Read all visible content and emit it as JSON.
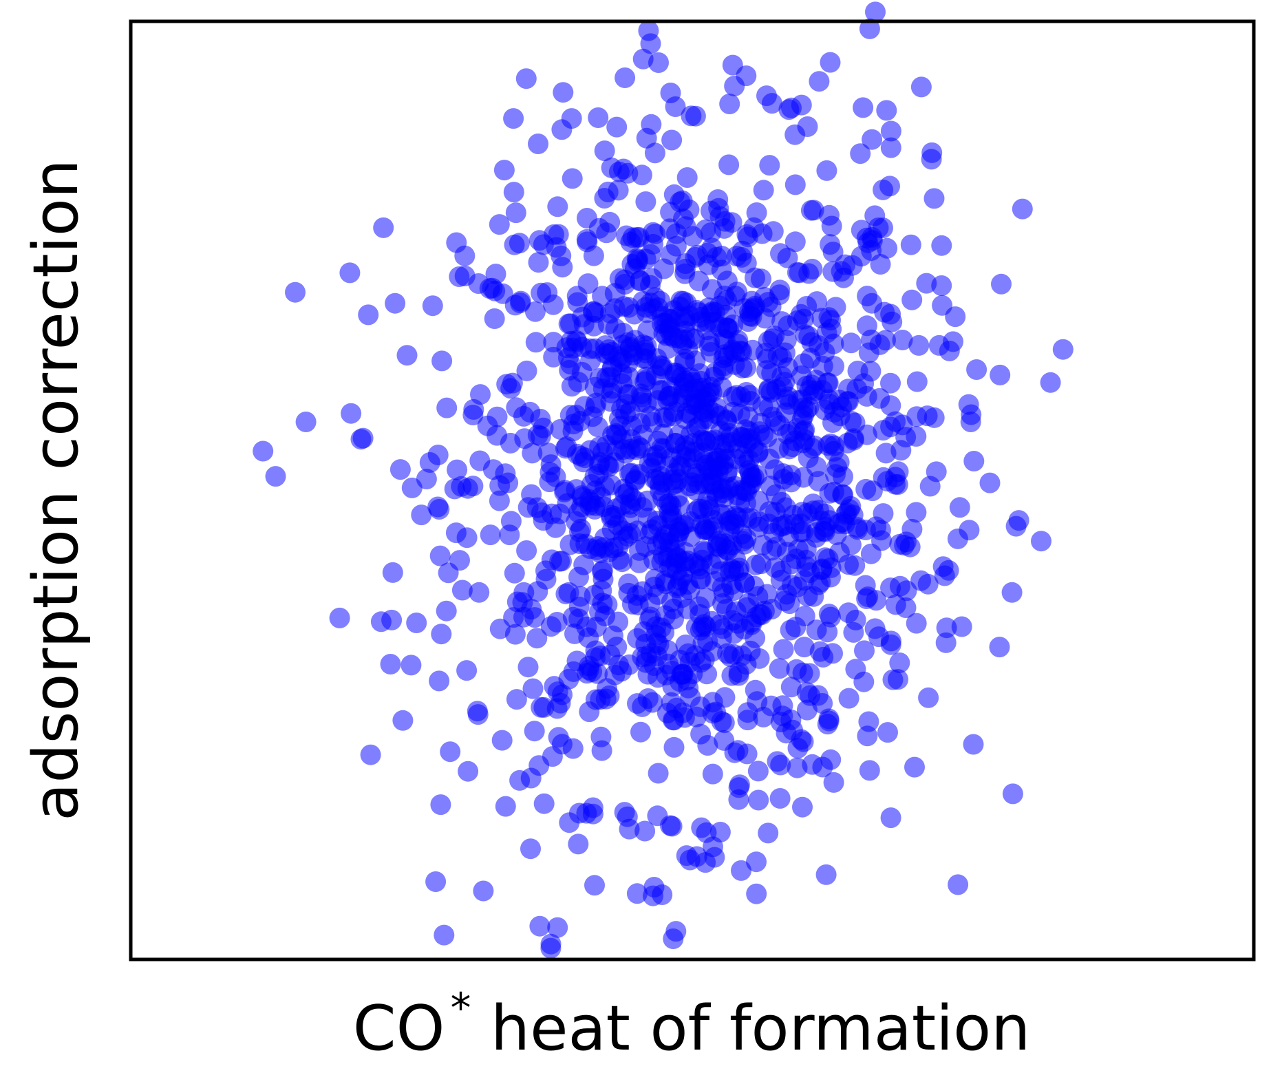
{
  "chart_data": {
    "type": "scatter",
    "xlabel_main": "CO",
    "xlabel_sup": "*",
    "xlabel_rest": " heat of formation",
    "ylabel": "adsorption correction",
    "xlim": [
      0,
      100
    ],
    "ylim": [
      0,
      100
    ],
    "xticks": [],
    "yticks": [],
    "grid": false,
    "marker_color": "#0000ff",
    "marker_alpha": 0.5,
    "series": [
      {
        "values": [
          {
            "x": 46.1,
            "y": 99.0
          },
          {
            "x": 65.8,
            "y": 99.2
          },
          {
            "x": 66.3,
            "y": 101.0
          },
          {
            "x": 47.0,
            "y": 95.6
          },
          {
            "x": 61.3,
            "y": 93.6
          },
          {
            "x": 54.8,
            "y": 94.2
          },
          {
            "x": 42.2,
            "y": 86.2
          },
          {
            "x": 48.5,
            "y": 90.9
          },
          {
            "x": 50.3,
            "y": 89.9
          },
          {
            "x": 58.6,
            "y": 90.6
          },
          {
            "x": 65.2,
            "y": 90.8
          },
          {
            "x": 70.4,
            "y": 93.0
          },
          {
            "x": 66.0,
            "y": 87.4
          },
          {
            "x": 67.7,
            "y": 88.3
          },
          {
            "x": 37.9,
            "y": 75.9
          },
          {
            "x": 22.5,
            "y": 78.0
          },
          {
            "x": 34.3,
            "y": 79.6
          },
          {
            "x": 79.4,
            "y": 80.0
          },
          {
            "x": 71.3,
            "y": 85.3
          },
          {
            "x": 72.2,
            "y": 76.1
          },
          {
            "x": 24.6,
            "y": 64.4
          },
          {
            "x": 27.7,
            "y": 63.8
          },
          {
            "x": 15.6,
            "y": 57.3
          },
          {
            "x": 12.9,
            "y": 51.5
          },
          {
            "x": 81.9,
            "y": 61.5
          },
          {
            "x": 77.4,
            "y": 62.3
          },
          {
            "x": 76.5,
            "y": 50.8
          },
          {
            "x": 74.8,
            "y": 57.3
          },
          {
            "x": 18.6,
            "y": 36.4
          },
          {
            "x": 22.3,
            "y": 36.0
          },
          {
            "x": 71.0,
            "y": 40.0
          },
          {
            "x": 66.6,
            "y": 34.4
          },
          {
            "x": 27.6,
            "y": 16.5
          },
          {
            "x": 31.4,
            "y": 7.3
          },
          {
            "x": 27.9,
            "y": 2.6
          },
          {
            "x": 38.0,
            "y": 3.4
          },
          {
            "x": 37.4,
            "y": 1.2
          },
          {
            "x": 48.3,
            "y": 2.2
          },
          {
            "x": 46.6,
            "y": 7.7
          },
          {
            "x": 41.3,
            "y": 7.9
          },
          {
            "x": 35.6,
            "y": 11.8
          },
          {
            "x": 49.8,
            "y": 10.6
          },
          {
            "x": 55.7,
            "y": 10.4
          },
          {
            "x": 48.2,
            "y": 14.2
          }
        ]
      }
    ]
  }
}
